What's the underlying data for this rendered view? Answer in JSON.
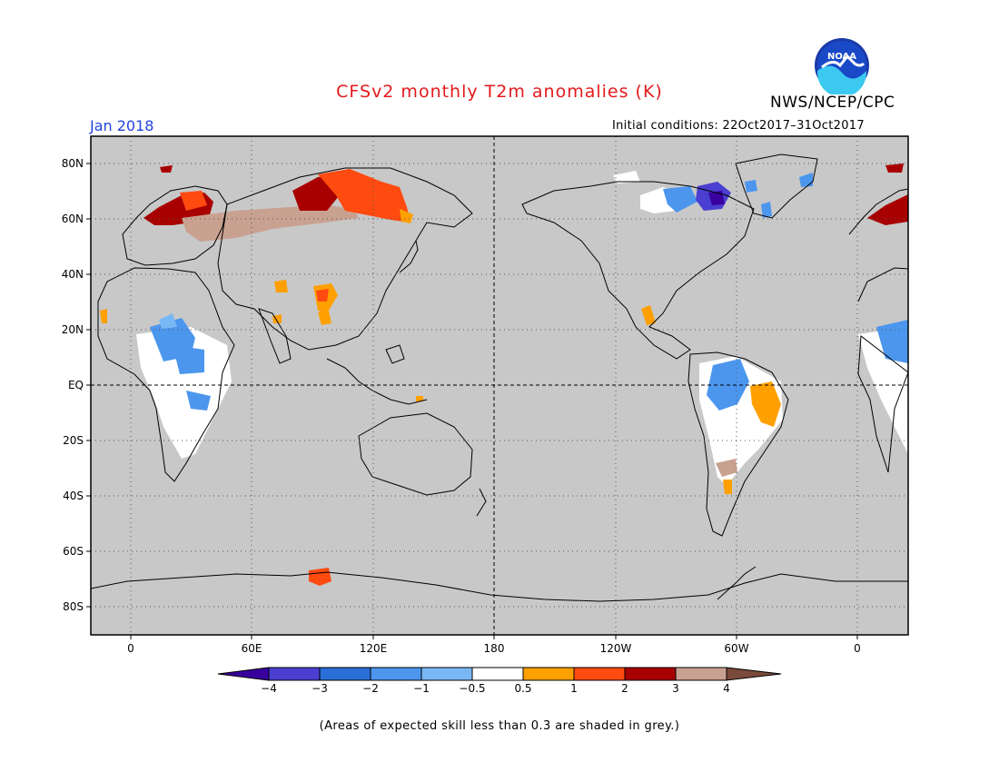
{
  "title": "CFSv2 monthly T2m anomalies (K)",
  "agency": "NWS/NCEP/CPC",
  "logo_text": "NOAA",
  "month": "Jan 2018",
  "initial_conditions": "Initial conditions: 22Oct2017–31Oct2017",
  "footnote": "(Areas of expected skill less than 0.3 are shaded in grey.)",
  "map": {
    "projection": "cylindrical equidistant, centered 180",
    "lat_labels": [
      "80N",
      "60N",
      "40N",
      "20N",
      "EQ",
      "20S",
      "40S",
      "60S",
      "80S"
    ],
    "lon_labels": [
      "0",
      "60E",
      "120E",
      "180",
      "120W",
      "60W",
      "0"
    ],
    "mask_color": "#c8c8c8",
    "gridlines": "dotted"
  },
  "colorbar": {
    "colors": [
      "#3a009e",
      "#4a3fd0",
      "#2a6ed8",
      "#4c96ee",
      "#7ab8f5",
      "#ffffff",
      "#ffa000",
      "#ff4a10",
      "#a80000",
      "#c9a190",
      "#7a4a3a"
    ],
    "labels": [
      "−4",
      "−3",
      "−2",
      "−1",
      "−0.5",
      "0.5",
      "1",
      "2",
      "3",
      "4"
    ]
  }
}
